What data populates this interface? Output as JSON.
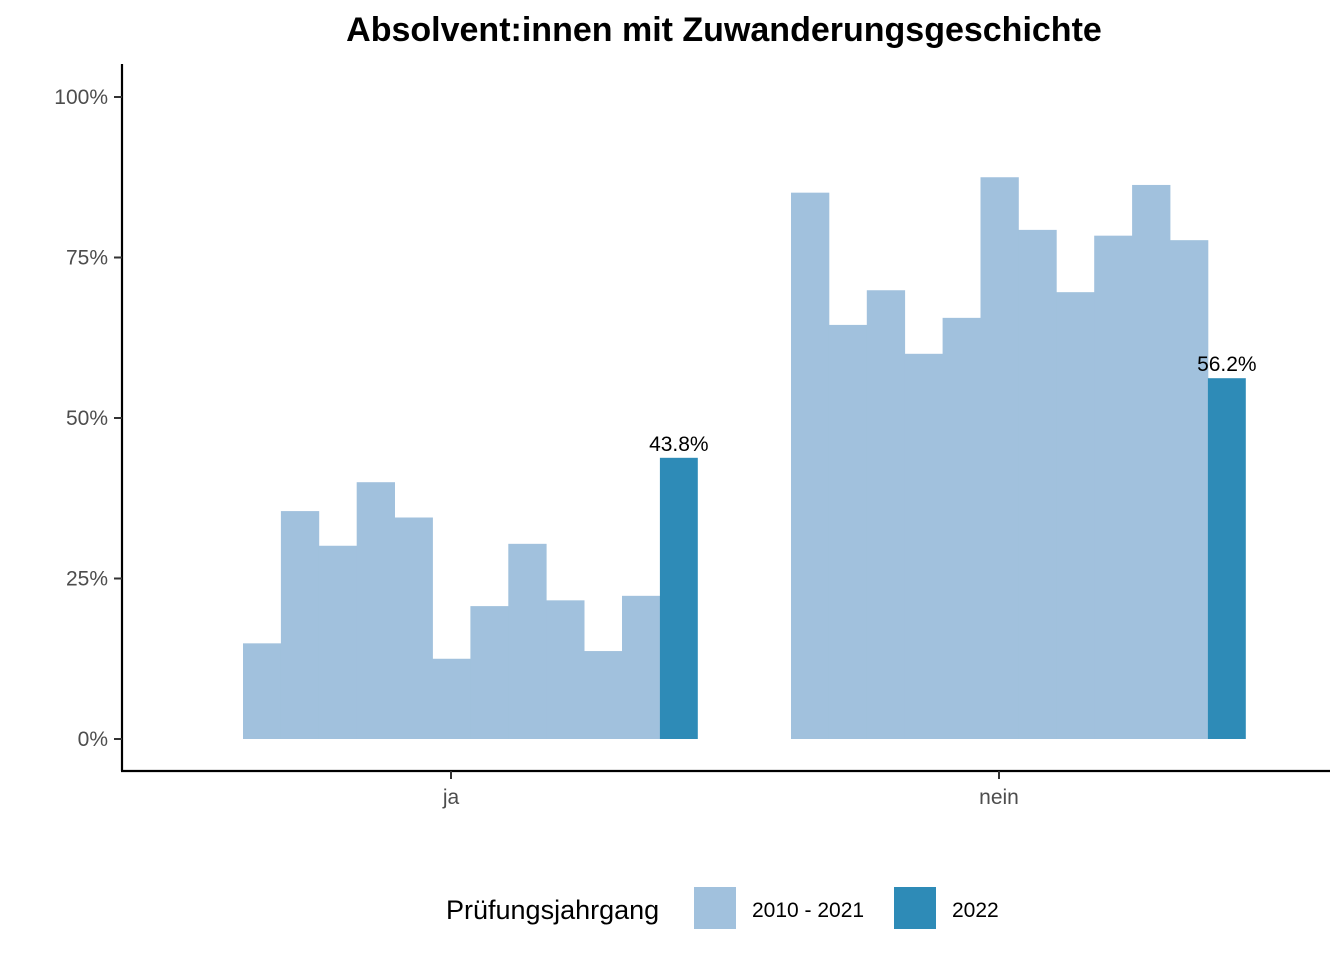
{
  "chart_data": {
    "type": "bar",
    "title": "Absolvent:innen mit Zuwanderungsgeschichte",
    "xlabel": "",
    "ylabel": "",
    "categories": [
      "ja",
      "nein"
    ],
    "y_ticks": [
      "0%",
      "25%",
      "50%",
      "75%",
      "100%"
    ],
    "ylim": [
      0,
      100
    ],
    "legend": {
      "title": "Prüfungsjahrgang",
      "position": "bottom",
      "entries": [
        {
          "label": "2010 - 2021",
          "color": "#a1c1dd"
        },
        {
          "label": "2022",
          "color": "#2e8bb7"
        }
      ]
    },
    "series": [
      {
        "name": "2010 - 2021",
        "color": "#a1c1dd",
        "values_per_category": [
          [
            14.9,
            35.5,
            30.1,
            40.0,
            34.5,
            12.5,
            20.7,
            30.4,
            21.6,
            13.7,
            22.3
          ],
          [
            85.1,
            64.5,
            69.9,
            60.0,
            65.6,
            87.5,
            79.3,
            69.6,
            78.4,
            86.3,
            77.7
          ]
        ]
      },
      {
        "name": "2022",
        "color": "#2e8bb7",
        "values": [
          43.8,
          56.2
        ],
        "labels": [
          "43.8%",
          "56.2%"
        ]
      }
    ],
    "grid": false
  }
}
